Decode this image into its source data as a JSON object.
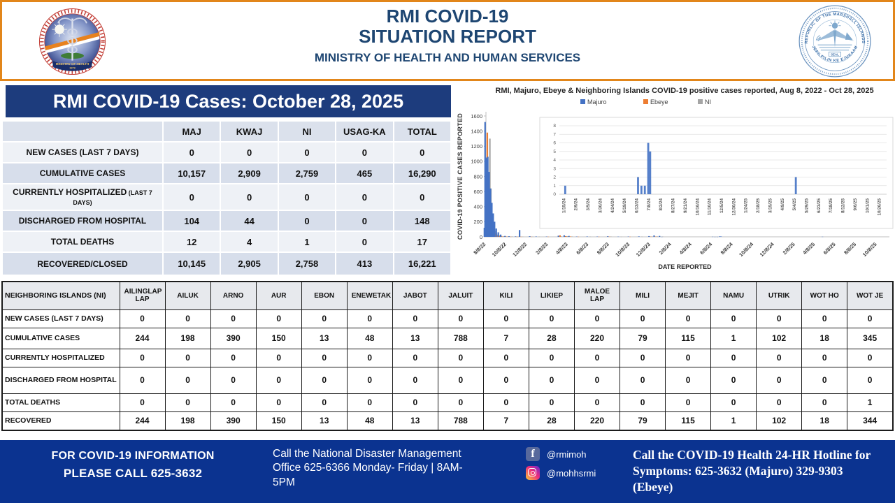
{
  "header": {
    "title_line1": "RMI COVID-19",
    "title_line2": "SITUATION REPORT",
    "subtitle": "MINISTRY OF HEALTH AND HUMAN SERVICES",
    "moh_seal": {
      "banner": "MINISTRY OF HEALTH",
      "year": "1979"
    },
    "rmi_seal": {
      "top_text": "REPUBLIC OF THE MARSHALL ISLANDS",
      "bottom_text": "JEPILPILIN KE EJUKAAN",
      "center_text": "SEAL"
    }
  },
  "cases_section": {
    "banner": "RMI COVID-19 Cases: October 28, 2025",
    "columns": [
      "MAJ",
      "KWAJ",
      "NI",
      "USAG-KA",
      "TOTAL"
    ],
    "rows": [
      {
        "label": "NEW CASES (LAST 7 DAYS)",
        "values": [
          "0",
          "0",
          "0",
          "0",
          "0"
        ]
      },
      {
        "label": "CUMULATIVE CASES",
        "values": [
          "10,157",
          "2,909",
          "2,759",
          "465",
          "16,290"
        ]
      },
      {
        "label": "CURRENTLY HOSPITALIZED",
        "label_small": "(LAST 7 DAYS)",
        "values": [
          "0",
          "0",
          "0",
          "0",
          "0"
        ]
      },
      {
        "label": "DISCHARGED FROM HOSPITAL",
        "values": [
          "104",
          "44",
          "0",
          "0",
          "148"
        ]
      },
      {
        "label": "TOTAL DEATHS",
        "values": [
          "12",
          "4",
          "1",
          "0",
          "17"
        ]
      },
      {
        "label": "RECOVERED/CLOSED",
        "values": [
          "10,145",
          "2,905",
          "2,758",
          "413",
          "16,221"
        ]
      }
    ]
  },
  "ni_section": {
    "corner_label": "NEIGHBORING ISLANDS (NI)",
    "columns": [
      "AILINGLAP LAP",
      "AILUK",
      "ARNO",
      "AUR",
      "EBON",
      "ENEWETAK",
      "JABOT",
      "JALUIT",
      "KILI",
      "LIKIEP",
      "MALOE LAP",
      "MILI",
      "MEJIT",
      "NAMU",
      "UTRIK",
      "WOT HO",
      "WOT JE"
    ],
    "rows": [
      {
        "label": "NEW CASES (LAST 7 DAYS)",
        "values": [
          "0",
          "0",
          "0",
          "0",
          "0",
          "0",
          "0",
          "0",
          "0",
          "0",
          "0",
          "0",
          "0",
          "0",
          "0",
          "0",
          "0"
        ]
      },
      {
        "label": "CUMULATIVE CASES",
        "values": [
          "244",
          "198",
          "390",
          "150",
          "13",
          "48",
          "13",
          "788",
          "7",
          "28",
          "220",
          "79",
          "115",
          "1",
          "102",
          "18",
          "345"
        ]
      },
      {
        "label": "CURRENTLY HOSPITALIZED",
        "values": [
          "0",
          "0",
          "0",
          "0",
          "0",
          "0",
          "0",
          "0",
          "0",
          "0",
          "0",
          "0",
          "0",
          "0",
          "0",
          "0",
          "0"
        ]
      },
      {
        "label": "DISCHARGED FROM HOSPITAL",
        "values": [
          "0",
          "0",
          "0",
          "0",
          "0",
          "0",
          "0",
          "0",
          "0",
          "0",
          "0",
          "0",
          "0",
          "0",
          "0",
          "0",
          "0"
        ]
      },
      {
        "label": "TOTAL DEATHS",
        "values": [
          "0",
          "0",
          "0",
          "0",
          "0",
          "0",
          "0",
          "0",
          "0",
          "0",
          "0",
          "0",
          "0",
          "0",
          "0",
          "0",
          "1"
        ]
      },
      {
        "label": "RECOVERED",
        "values": [
          "244",
          "198",
          "390",
          "150",
          "13",
          "48",
          "13",
          "788",
          "7",
          "28",
          "220",
          "79",
          "115",
          "1",
          "102",
          "18",
          "344"
        ]
      }
    ]
  },
  "chart_data": [
    {
      "name": "main",
      "type": "bar",
      "title": "RMI, Majuro, Ebeye & Neighboring Islands COVID-19 positive cases reported, Aug 8, 2022 - Oct 28, 2025",
      "ylabel": "COVID-19  POSITIVE CASES REPORTED",
      "xlabel": "DATE REPORTED",
      "legend": [
        {
          "name": "Majuro",
          "color": "#4472C4"
        },
        {
          "name": "Ebeye",
          "color": "#ED7D31"
        },
        {
          "name": "NI",
          "color": "#A5A5A5"
        }
      ],
      "ylim": [
        0,
        1600
      ],
      "yticks": [
        0,
        200,
        400,
        600,
        800,
        1000,
        1200,
        1400,
        1600
      ],
      "xlim": [
        "8/8/22",
        "10/28/25"
      ],
      "x_tick_labels": [
        "8/8/22",
        "10/8/22",
        "12/8/22",
        "2/8/23",
        "4/8/23",
        "6/8/23",
        "8/8/23",
        "10/8/23",
        "12/8/23",
        "2/8/24",
        "4/8/24",
        "6/8/24",
        "8/8/24",
        "10/8/24",
        "12/8/24",
        "2/8/25",
        "4/8/25",
        "6/8/25",
        "8/8/25",
        "10/8/25"
      ],
      "grid": false,
      "points": [
        {
          "date": "8/8/22",
          "majuro": 120,
          "ebeye": 30,
          "ni": 10
        },
        {
          "date": "8/10/22",
          "majuro": 1520,
          "ebeye": 210,
          "ni": 60
        },
        {
          "date": "8/12/22",
          "majuro": 1050,
          "ebeye": 1380,
          "ni": 220
        },
        {
          "date": "8/15/22",
          "majuro": 1040,
          "ebeye": 760,
          "ni": 1300
        },
        {
          "date": "8/18/22",
          "majuro": 1060,
          "ebeye": 420,
          "ni": 640
        },
        {
          "date": "8/22/22",
          "majuro": 860,
          "ebeye": 230,
          "ni": 300
        },
        {
          "date": "8/26/22",
          "majuro": 640,
          "ebeye": 120,
          "ni": 150
        },
        {
          "date": "8/30/22",
          "majuro": 450,
          "ebeye": 70,
          "ni": 80
        },
        {
          "date": "9/3/22",
          "majuro": 310,
          "ebeye": 45,
          "ni": 50
        },
        {
          "date": "9/7/22",
          "majuro": 200,
          "ebeye": 25,
          "ni": 30
        },
        {
          "date": "9/12/22",
          "majuro": 110,
          "ebeye": 15,
          "ni": 20
        },
        {
          "date": "9/18/22",
          "majuro": 60,
          "ebeye": 8,
          "ni": 12
        },
        {
          "date": "9/25/22",
          "majuro": 30,
          "ebeye": 5,
          "ni": 8
        },
        {
          "date": "10/8/22",
          "majuro": 12,
          "ebeye": 4,
          "ni": 6
        },
        {
          "date": "10/20/22",
          "majuro": 8,
          "ebeye": 2,
          "ni": 5
        },
        {
          "date": "11/8/22",
          "majuro": 6,
          "ebeye": 2,
          "ni": 4
        },
        {
          "date": "11/20/22",
          "majuro": 90,
          "ebeye": 2,
          "ni": 3
        },
        {
          "date": "12/20/22",
          "majuro": 8,
          "ebeye": 2,
          "ni": 3
        },
        {
          "date": "1/8/23",
          "majuro": 5,
          "ni": 3
        },
        {
          "date": "2/8/23",
          "majuro": 4,
          "ebeye": 2
        },
        {
          "date": "3/15/23",
          "majuro": 15,
          "ebeye": 20,
          "ni": 6
        },
        {
          "date": "4/1/23",
          "majuro": 20,
          "ebeye": 10,
          "ni": 8
        },
        {
          "date": "4/15/23",
          "majuro": 12,
          "ebeye": 5,
          "ni": 5
        },
        {
          "date": "5/8/23",
          "majuro": 4,
          "ebeye": 2
        },
        {
          "date": "6/8/23",
          "majuro": 5,
          "ni": 3
        },
        {
          "date": "7/8/23",
          "majuro": 4,
          "ebeye": 2
        },
        {
          "date": "8/8/23",
          "majuro": 8,
          "ebeye": 3,
          "ni": 4
        },
        {
          "date": "9/8/23",
          "majuro": 3,
          "ni": 2
        },
        {
          "date": "10/8/23",
          "majuro": 4,
          "ebeye": 2
        },
        {
          "date": "11/8/23",
          "majuro": 6,
          "ni": 3
        },
        {
          "date": "12/8/23",
          "majuro": 10,
          "ebeye": 3,
          "ni": 5
        },
        {
          "date": "12/23/23",
          "majuro": 18,
          "ebeye": 4,
          "ni": 6
        },
        {
          "date": "1/8/24",
          "majuro": 12,
          "ni": 4
        },
        {
          "date": "1/15/24",
          "majuro": 1
        },
        {
          "date": "6/13/24",
          "majuro": 2
        },
        {
          "date": "6/20/24",
          "majuro": 1
        },
        {
          "date": "6/27/24",
          "majuro": 1
        },
        {
          "date": "7/4/24",
          "majuro": 6
        },
        {
          "date": "7/8/24",
          "majuro": 5
        },
        {
          "date": "5/4/25",
          "majuro": 2
        }
      ]
    },
    {
      "name": "inset",
      "type": "bar",
      "ylim": [
        0,
        8
      ],
      "yticks": [
        0,
        1,
        2,
        3,
        4,
        5,
        6,
        7,
        8
      ],
      "xlim": [
        "1/3/24",
        "11/7/25"
      ],
      "x_tick_labels": [
        "1/15/24",
        "2/9/24",
        "3/5/24",
        "3/30/24",
        "4/24/24",
        "5/19/24",
        "6/13/24",
        "7/8/24",
        "8/2/24",
        "8/27/24",
        "9/21/24",
        "10/16/24",
        "11/10/24",
        "12/5/24",
        "12/30/24",
        "1/24/25",
        "2/18/25",
        "3/15/25",
        "4/9/25",
        "5/4/25",
        "5/29/25",
        "6/23/25",
        "7/18/25",
        "8/12/25",
        "9/6/25",
        "10/1/25",
        "10/26/25"
      ],
      "grid": true,
      "bars": [
        {
          "date": "1/15/24",
          "series": "Majuro",
          "value": 1
        },
        {
          "date": "6/13/24",
          "series": "Majuro",
          "value": 2
        },
        {
          "date": "6/20/24",
          "series": "Majuro",
          "value": 1
        },
        {
          "date": "6/27/24",
          "series": "Majuro",
          "value": 1
        },
        {
          "date": "7/4/24",
          "series": "Majuro",
          "value": 6
        },
        {
          "date": "7/8/24",
          "series": "Majuro",
          "value": 5
        },
        {
          "date": "5/4/25",
          "series": "Majuro",
          "value": 2
        }
      ]
    }
  ],
  "footer": {
    "info_line1": "FOR COVID-19 INFORMATION",
    "info_line2": "PLEASE CALL 625-3632",
    "ndmo_text": "Call the National Disaster Management Office 625-6366 Monday- Friday | 8AM-5PM",
    "facebook_glyph": "f",
    "facebook_handle": "@rmimoh",
    "instagram_handle": "@mohhsrmi",
    "hotline_text": "Call the COVID-19 Health 24-HR Hotline for Symptoms: 625-3632 (Majuro)  329-9303  (Ebeye)"
  },
  "colors": {
    "majuro": "#4472C4",
    "ebeye": "#ED7D31",
    "ni": "#A5A5A5",
    "banner_blue": "#1d3c7d",
    "footer_blue": "#0b3390",
    "accent_orange": "#e2861a",
    "title_navy": "#1e4672"
  }
}
